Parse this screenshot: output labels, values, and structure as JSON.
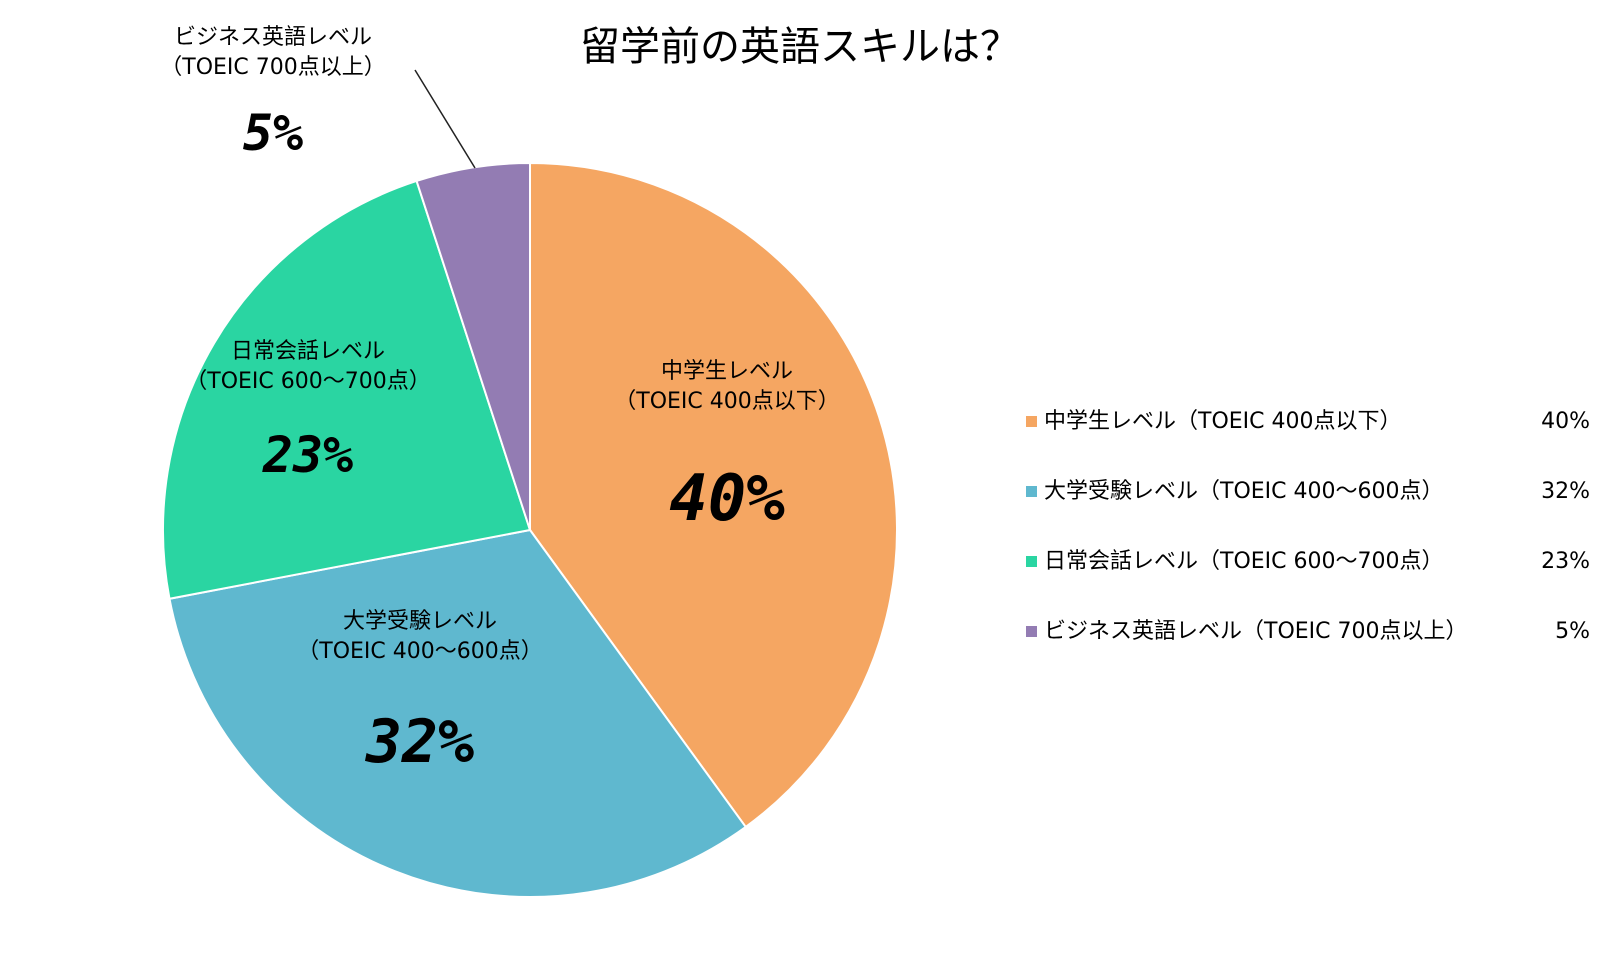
{
  "chart_data": {
    "type": "pie",
    "title": "留学前の英語スキルは？",
    "legend_position": "right",
    "slices": [
      {
        "name": "中学生レベル",
        "detail": "（TOEIC 400点以下）",
        "value": 40,
        "label": "40%",
        "color": "#F5A662"
      },
      {
        "name": "大学受験レベル",
        "detail": "（TOEIC 400〜600点）",
        "value": 32,
        "label": "32%",
        "color": "#5FB8CF"
      },
      {
        "name": "日常会話レベル",
        "detail": "（TOEIC 600〜700点）",
        "value": 23,
        "label": "23%",
        "color": "#2AD5A2"
      },
      {
        "name": "ビジネス英語レベル",
        "detail": "（TOEIC 700点以上）",
        "value": 5,
        "label": "5%",
        "color": "#937CB3"
      }
    ],
    "legend": [
      {
        "text": "中学生レベル（TOEIC 400点以下）",
        "value": "40%"
      },
      {
        "text": "大学受験レベル（TOEIC 400〜600点）",
        "value": "32%"
      },
      {
        "text": "日常会話レベル（TOEIC 600〜700点）",
        "value": "23%"
      },
      {
        "text": "ビジネス英語レベル（TOEIC 700点以上）",
        "value": "5%"
      }
    ]
  }
}
